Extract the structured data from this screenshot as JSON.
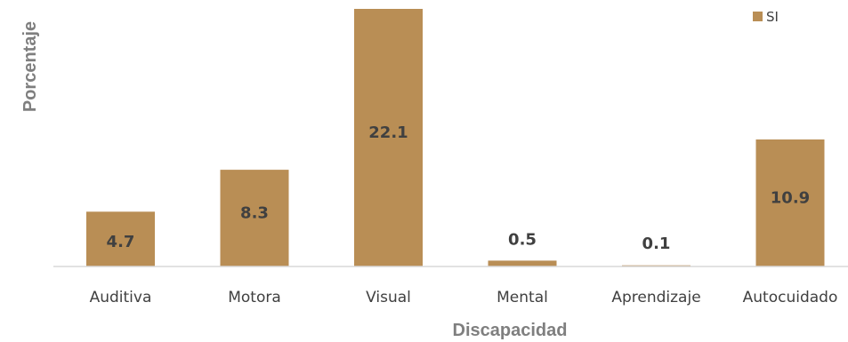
{
  "chart_data": {
    "type": "bar",
    "categories": [
      "Auditiva",
      "Motora",
      "Visual",
      "Mental",
      "Aprendizaje",
      "Autocuidado"
    ],
    "series": [
      {
        "name": "SI",
        "values": [
          4.7,
          8.3,
          22.1,
          0.5,
          0.1,
          10.9
        ]
      }
    ],
    "data_labels": [
      "4.7",
      "8.3",
      "22.1",
      "0.5",
      "0.1",
      "10.9"
    ],
    "title": "",
    "xlabel": "Discapacidad",
    "ylabel": "Porcentaje",
    "ylim": [
      0,
      22.1
    ],
    "grid": false,
    "legend_position": "top-right",
    "colors": {
      "bar": "#b98e55",
      "axis": "#d9d9d9",
      "text": "#404040",
      "axis_title": "#7f7f7f"
    }
  }
}
